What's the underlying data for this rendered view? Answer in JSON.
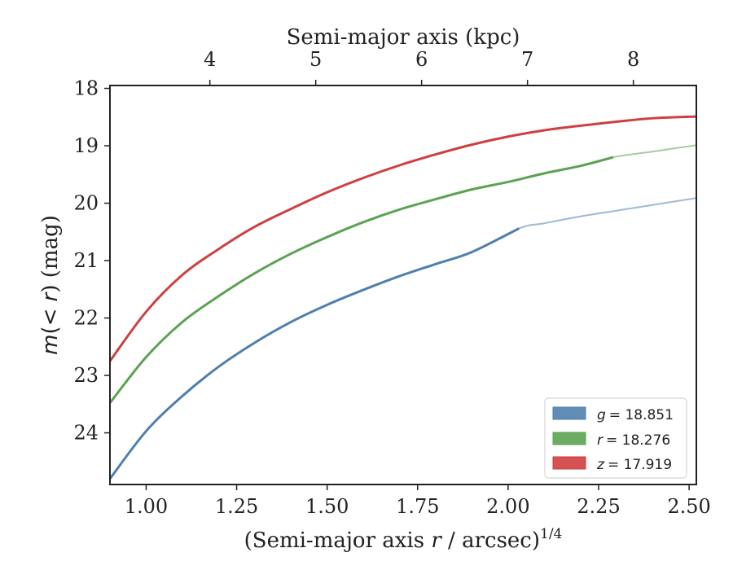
{
  "chart_data": {
    "type": "line",
    "xlabel": "(Semi-major axis r / arcsec)^{1/4}",
    "xlabel_parts": {
      "pre": "(Semi-major axis ",
      "r": "r",
      "mid": " / arcsec)",
      "exp": "1/4"
    },
    "top_xlabel": "Semi-major axis (kpc)",
    "ylabel": "m(<r) (mag)",
    "ylabel_parts": {
      "m": "m",
      "open": "(",
      "lt": "< ",
      "r": "r",
      "close": ") (mag)"
    },
    "xlim": [
      0.9,
      2.52
    ],
    "ylim": [
      24.9,
      17.95
    ],
    "y_inverted": true,
    "x_ticks": [
      "1.00",
      "1.25",
      "1.50",
      "1.75",
      "2.00",
      "2.25",
      "2.50"
    ],
    "x_tick_values": [
      1.0,
      1.25,
      1.5,
      1.75,
      2.0,
      2.25,
      2.5
    ],
    "y_ticks": [
      "18",
      "19",
      "20",
      "21",
      "22",
      "23",
      "24"
    ],
    "y_tick_values": [
      18,
      19,
      20,
      21,
      22,
      23,
      24
    ],
    "top_ticks": [
      "4",
      "5",
      "6",
      "7",
      "8"
    ],
    "top_tick_values": [
      4,
      5,
      6,
      7,
      8
    ],
    "top_axis_mapping": {
      "x_at_4kpc": 1.176,
      "x_per_kpc": 0.2925
    },
    "legend_position": "lower right",
    "series": [
      {
        "name": "g = 18.851",
        "legend_var": "g",
        "legend_val": "= 18.851",
        "color": "#4f7fae",
        "x": [
          0.9,
          1.0,
          1.1,
          1.2,
          1.3,
          1.4,
          1.5,
          1.6,
          1.7,
          1.8,
          1.9,
          2.03,
          2.1,
          2.2,
          2.3,
          2.4,
          2.52
        ],
        "y": [
          24.8,
          23.97,
          23.36,
          22.85,
          22.43,
          22.07,
          21.77,
          21.51,
          21.27,
          21.06,
          20.85,
          20.44,
          20.35,
          20.23,
          20.13,
          20.03,
          19.91
        ],
        "solid_until_x": 2.03
      },
      {
        "name": "r = 18.276",
        "legend_var": "r",
        "legend_val": "= 18.276",
        "color": "#5ba352",
        "x": [
          0.9,
          1.0,
          1.1,
          1.2,
          1.3,
          1.4,
          1.5,
          1.6,
          1.7,
          1.8,
          1.9,
          2.0,
          2.1,
          2.2,
          2.29,
          2.4,
          2.52
        ],
        "y": [
          23.48,
          22.68,
          22.07,
          21.62,
          21.22,
          20.88,
          20.59,
          20.33,
          20.11,
          19.93,
          19.76,
          19.63,
          19.48,
          19.35,
          19.2,
          19.1,
          18.99
        ],
        "solid_until_x": 2.29
      },
      {
        "name": "z = 17.919",
        "legend_var": "z",
        "legend_val": "= 17.919",
        "color": "#d03f3f",
        "x": [
          0.9,
          1.0,
          1.1,
          1.2,
          1.3,
          1.4,
          1.5,
          1.6,
          1.7,
          1.8,
          1.9,
          2.0,
          2.1,
          2.2,
          2.3,
          2.4,
          2.52
        ],
        "y": [
          22.75,
          21.89,
          21.25,
          20.8,
          20.41,
          20.1,
          19.81,
          19.56,
          19.34,
          19.15,
          18.98,
          18.84,
          18.73,
          18.65,
          18.58,
          18.52,
          18.49
        ],
        "solid_until_x": 2.52
      }
    ]
  }
}
